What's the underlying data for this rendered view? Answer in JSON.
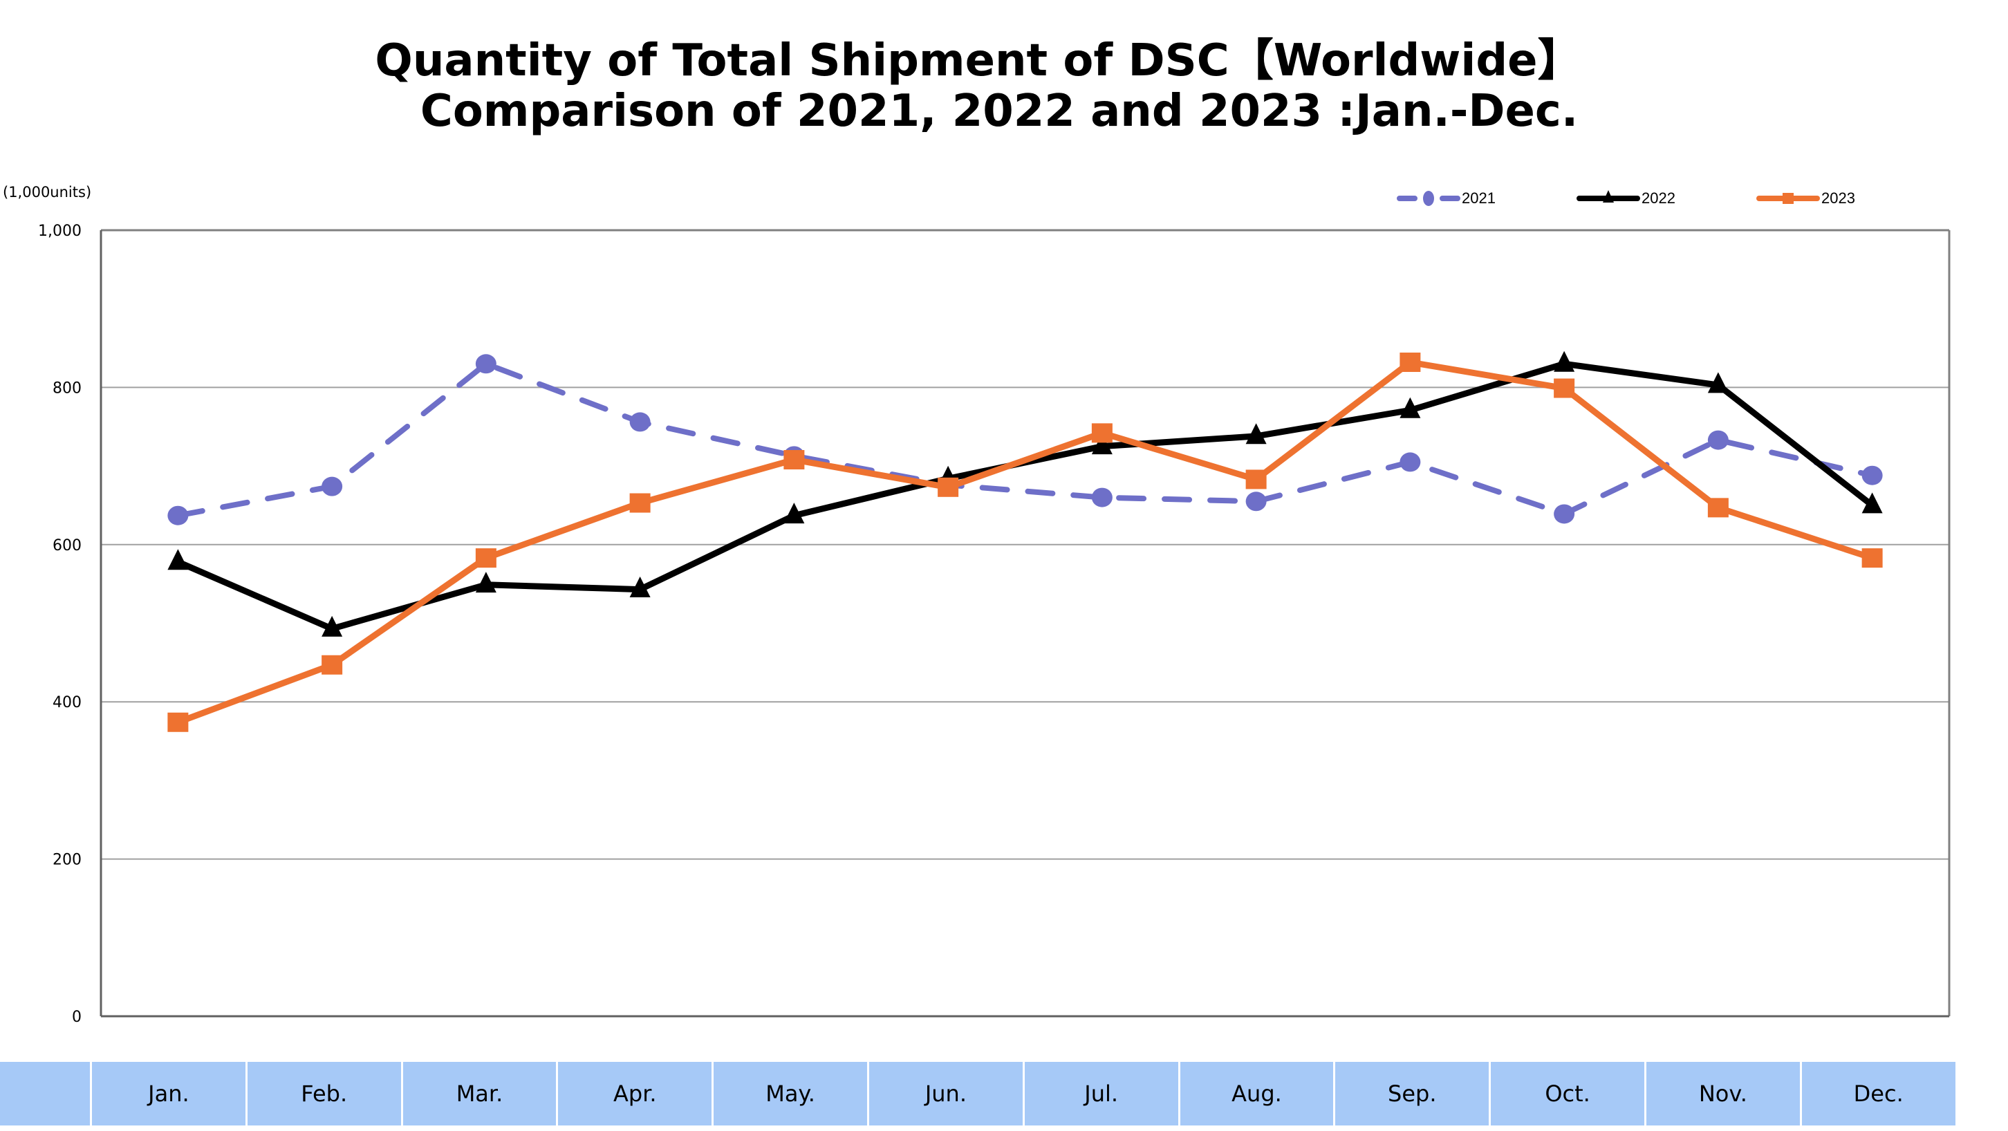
{
  "title_line1": "Quantity of Total Shipment of DSC【Worldwide】",
  "title_line2": "Comparison of 2021, 2022 and 2023 :Jan.-Dec.",
  "unit_label": "(1,000units)",
  "colors": {
    "s2021": "#6E6FC8",
    "s2022": "#000000",
    "s2023": "#EE7230",
    "month_band": "#A6C9F7",
    "grid": "#A0A0A0",
    "axis": "#808080"
  },
  "chart_data": {
    "type": "line",
    "title": "Quantity of Total Shipment of DSC【Worldwide】 Comparison of 2021, 2022 and 2023 :Jan.-Dec.",
    "xlabel": "",
    "ylabel": "(1,000units)",
    "categories": [
      "Jan.",
      "Feb.",
      "Mar.",
      "Apr.",
      "May.",
      "Jun.",
      "Jul.",
      "Aug.",
      "Sep.",
      "Oct.",
      "Nov.",
      "Dec."
    ],
    "ylim": [
      0,
      1000
    ],
    "yticks": [
      0,
      200,
      400,
      600,
      800,
      1000
    ],
    "ytick_labels": [
      "0",
      "200",
      "400",
      "600",
      "800",
      "1,000"
    ],
    "grid": true,
    "legend_position": "top-right",
    "series": [
      {
        "name": "2021",
        "marker": "circle",
        "line": "dashed",
        "color": "#6E6FC8",
        "values": [
          637,
          674,
          830,
          756,
          713,
          676,
          660,
          655,
          705,
          639,
          733,
          688
        ]
      },
      {
        "name": "2022",
        "marker": "triangle",
        "line": "solid",
        "color": "#000000",
        "values": [
          578,
          493,
          549,
          543,
          637,
          684,
          725,
          738,
          771,
          830,
          803,
          650
        ]
      },
      {
        "name": "2023",
        "marker": "square",
        "line": "solid",
        "color": "#EE7230",
        "values": [
          374,
          447,
          583,
          653,
          708,
          673,
          742,
          683,
          832,
          799,
          647,
          583
        ]
      }
    ]
  }
}
